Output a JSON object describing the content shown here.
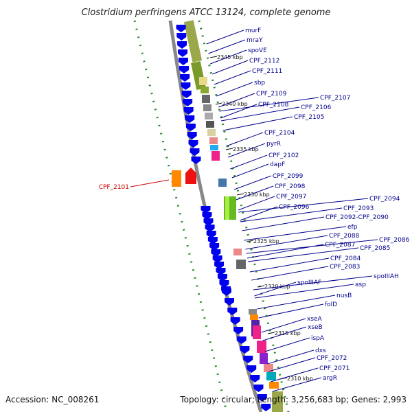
{
  "title": "Clostridium perfringens ATCC 13124, complete genome",
  "footer": {
    "accession": "Accession: NC_008261",
    "topology": "Topology: circular; Length: 3,256,683 bp; Genes: 2,993"
  },
  "kbp_ticks": [
    "2345 kbp",
    "2340 kbp",
    "2335 kbp",
    "2330 kbp",
    "2325 kbp",
    "2320 kbp",
    "2315 kbp",
    "2310 kbp"
  ],
  "gene_labels": [
    "murF",
    "mraY",
    "spoVE",
    "CPF_2112",
    "CPF_2111",
    "sbp",
    "CPF_2109",
    "CPF_2108",
    "CPF_2107",
    "CPF_2106",
    "CPF_2105",
    "CPF_2104",
    "pyrR",
    "CPF_2102",
    "dapF",
    "CPF_2099",
    "CPF_2098",
    "CPF_2097",
    "CPF_2096",
    "CPF_2094",
    "CPF_2093",
    "CPF_2092-CPF_2090",
    "efp",
    "CPF_2088",
    "CPF_2087",
    "CPF_2086",
    "CPF_2085",
    "CPF_2084",
    "CPF_2083",
    "spoIIIAF",
    "spoIIIAH",
    "asp",
    "nusB",
    "folD",
    "xseA",
    "xseB",
    "ispA",
    "dxs",
    "CPF_2072",
    "CPF_2071",
    "argR"
  ],
  "highlight_label": "CPF_2101",
  "colors": {
    "label_blue": "#00008b",
    "highlight_red": "#cc0000",
    "arrow_blue": "#0000ee",
    "green_dots": "#2a8a2a",
    "backbone": "#888888"
  }
}
